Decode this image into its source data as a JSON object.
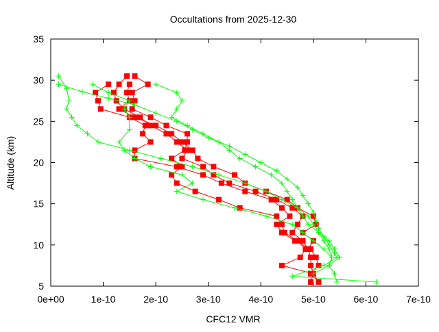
{
  "chart_data": {
    "type": "line",
    "title": "Occultations from 2025-12-30",
    "xlabel": "CFC12 VMR",
    "ylabel": "Altitude (km)",
    "xlim": [
      0,
      7e-10
    ],
    "ylim": [
      5,
      35
    ],
    "xticks": [
      "0e+00",
      "1e-10",
      "2e-10",
      "3e-10",
      "4e-10",
      "5e-10",
      "6e-10",
      "7e-10"
    ],
    "yticks": [
      "5",
      "10",
      "15",
      "20",
      "25",
      "30",
      "35"
    ],
    "grid": false,
    "colors": {
      "observed": "#ff0000",
      "model": "#00ff00"
    },
    "series": [
      {
        "marker": "square",
        "color": "#ff0000",
        "points": [
          [
            1.45e-10,
            30.5
          ],
          [
            1.3e-10,
            29.5
          ],
          [
            1.2e-10,
            28.5
          ],
          [
            1.25e-10,
            27.5
          ],
          [
            1.4e-10,
            26.5
          ],
          [
            1.7e-10,
            25.5
          ],
          [
            1.9e-10,
            24.5
          ],
          [
            2.2e-10,
            23.5
          ],
          [
            2.4e-10,
            22.5
          ],
          [
            2.6e-10,
            21.5
          ],
          [
            2.5e-10,
            20.5
          ],
          [
            2.9e-10,
            19.5
          ],
          [
            3.1e-10,
            18.5
          ],
          [
            3.4e-10,
            17.5
          ],
          [
            3.9e-10,
            16.5
          ],
          [
            4.3e-10,
            15.5
          ],
          [
            4.6e-10,
            14.5
          ],
          [
            4.8e-10,
            13.5
          ],
          [
            4.7e-10,
            12.5
          ],
          [
            4.6e-10,
            11.5
          ],
          [
            4.8e-10,
            10.5
          ],
          [
            4.9e-10,
            9.5
          ],
          [
            4.95e-10,
            8.5
          ],
          [
            4.95e-10,
            7.5
          ],
          [
            5e-10,
            6.5
          ],
          [
            4.95e-10,
            5.5
          ]
        ]
      },
      {
        "marker": "square",
        "color": "#ff0000",
        "points": [
          [
            1.6e-10,
            30.5
          ],
          [
            1.85e-10,
            29.5
          ],
          [
            1.55e-10,
            28.5
          ],
          [
            1.6e-10,
            27.5
          ],
          [
            1.55e-10,
            26.5
          ],
          [
            1.9e-10,
            25.5
          ],
          [
            2.2e-10,
            24.5
          ],
          [
            2.6e-10,
            23.5
          ],
          [
            2.6e-10,
            22.5
          ],
          [
            2.55e-10,
            21.5
          ],
          [
            2.3e-10,
            20.5
          ],
          [
            2.5e-10,
            19.5
          ],
          [
            2.3e-10,
            18.5
          ],
          [
            2.4e-10,
            17.5
          ],
          [
            2.75e-10,
            16.5
          ],
          [
            3.2e-10,
            15.5
          ],
          [
            3.6e-10,
            14.5
          ],
          [
            4.3e-10,
            13.5
          ],
          [
            4.4e-10,
            12.5
          ],
          [
            4.45e-10,
            11.5
          ],
          [
            4.7e-10,
            10.5
          ],
          [
            4.85e-10,
            9.5
          ],
          [
            4.75e-10,
            8.5
          ],
          [
            4.4e-10,
            7.5
          ],
          [
            5e-10,
            6.5
          ],
          [
            5.1e-10,
            5.5
          ]
        ]
      },
      {
        "marker": "square",
        "color": "#ff0000",
        "points": [
          [
            1.1e-10,
            29.5
          ],
          [
            8.5e-11,
            28.5
          ],
          [
            9e-11,
            27.5
          ],
          [
            9.5e-11,
            26.5
          ],
          [
            1.5e-10,
            25.5
          ],
          [
            1.8e-10,
            24.5
          ],
          [
            1.75e-10,
            23.5
          ],
          [
            1.9e-10,
            22.5
          ],
          [
            1.6e-10,
            21.5
          ],
          [
            1.6e-10,
            20.5
          ],
          [
            2.4e-10,
            19.5
          ],
          [
            2.9e-10,
            18.5
          ],
          [
            3.25e-10,
            17.5
          ],
          [
            3.7e-10,
            16.5
          ],
          [
            4.2e-10,
            15.5
          ],
          [
            4.4e-10,
            14.5
          ],
          [
            4.55e-10,
            13.5
          ],
          [
            4.3e-10,
            12.5
          ],
          [
            4.4e-10,
            11.5
          ],
          [
            4.65e-10,
            10.5
          ],
          [
            4.95e-10,
            9.5
          ],
          [
            5.05e-10,
            8.5
          ],
          [
            5.1e-10,
            7.5
          ],
          [
            4.95e-10,
            6.5
          ],
          [
            5.1e-10,
            5.5
          ]
        ]
      },
      {
        "marker": "square",
        "color": "#ff0000",
        "points": [
          [
            1.5e-10,
            29.5
          ],
          [
            1.45e-10,
            28.5
          ],
          [
            1.5e-10,
            27.5
          ],
          [
            1.3e-10,
            26.5
          ],
          [
            1.6e-10,
            25.5
          ],
          [
            2e-10,
            24.5
          ],
          [
            2.3e-10,
            23.5
          ],
          [
            2.5e-10,
            22.5
          ],
          [
            2.7e-10,
            21.5
          ],
          [
            2.8e-10,
            20.5
          ],
          [
            3.1e-10,
            19.5
          ],
          [
            3.5e-10,
            18.5
          ],
          [
            3.7e-10,
            17.5
          ],
          [
            4.1e-10,
            16.5
          ],
          [
            4.5e-10,
            15.5
          ],
          [
            4.7e-10,
            14.5
          ],
          [
            5e-10,
            13.5
          ],
          [
            5.05e-10,
            12.5
          ],
          [
            4.8e-10,
            11.5
          ],
          [
            5e-10,
            10.5
          ],
          [
            4.9e-10,
            9.5
          ]
        ]
      },
      {
        "marker": "plus",
        "color": "#00ff00",
        "points": [
          [
            1.5e-11,
            30.5
          ],
          [
            3e-11,
            29
          ],
          [
            3.5e-11,
            27.5
          ],
          [
            3e-11,
            26.5
          ],
          [
            4e-11,
            25.5
          ],
          [
            5e-11,
            24.5
          ],
          [
            7e-11,
            23.5
          ],
          [
            9e-11,
            22.5
          ],
          [
            1.5e-10,
            21.5
          ],
          [
            2.1e-10,
            20.5
          ],
          [
            2.7e-10,
            19.5
          ],
          [
            3.2e-10,
            18.5
          ],
          [
            3.7e-10,
            17.5
          ],
          [
            4.1e-10,
            16.5
          ],
          [
            4.4e-10,
            15.5
          ],
          [
            4.7e-10,
            14.5
          ],
          [
            4.9e-10,
            13.5
          ],
          [
            5e-10,
            12.5
          ],
          [
            5.1e-10,
            11.5
          ],
          [
            5.2e-10,
            10.5
          ],
          [
            5.3e-10,
            9.5
          ],
          [
            5.35e-10,
            8.5
          ],
          [
            5.3e-10,
            7.5
          ],
          [
            5.4e-10,
            6.5
          ],
          [
            5.45e-10,
            5.5
          ]
        ]
      },
      {
        "marker": "plus",
        "color": "#00ff00",
        "points": [
          [
            1.5e-11,
            29.5
          ],
          [
            6e-11,
            28.6
          ],
          [
            1.1e-10,
            27.8
          ],
          [
            1.6e-10,
            27
          ],
          [
            2e-10,
            26
          ],
          [
            2.4e-10,
            25
          ],
          [
            2.7e-10,
            24
          ],
          [
            3e-10,
            23
          ],
          [
            3.4e-10,
            22
          ],
          [
            3.7e-10,
            21
          ],
          [
            4e-10,
            20
          ],
          [
            4.3e-10,
            19
          ],
          [
            4.5e-10,
            18
          ],
          [
            4.7e-10,
            17
          ],
          [
            4.8e-10,
            16
          ],
          [
            4.9e-10,
            15
          ],
          [
            5e-10,
            14
          ],
          [
            5.05e-10,
            13
          ],
          [
            5.1e-10,
            12
          ],
          [
            5.2e-10,
            11
          ],
          [
            5.3e-10,
            10
          ],
          [
            5.4e-10,
            9
          ],
          [
            5.45e-10,
            8.5
          ],
          [
            5.2e-10,
            7.5
          ],
          [
            4.6e-10,
            6.2
          ],
          [
            6.2e-10,
            5.5
          ]
        ]
      },
      {
        "marker": "plus",
        "color": "#00ff00",
        "points": [
          [
            2e-10,
            29.5
          ],
          [
            2.4e-10,
            28.5
          ],
          [
            2.5e-10,
            27.5
          ],
          [
            2.4e-10,
            26.5
          ],
          [
            2.3e-10,
            25.5
          ],
          [
            2.6e-10,
            24.5
          ],
          [
            2.9e-10,
            23.5
          ],
          [
            3.2e-10,
            22.5
          ],
          [
            3.4e-10,
            21.5
          ],
          [
            3.6e-10,
            20.5
          ],
          [
            3.9e-10,
            19.5
          ],
          [
            4.2e-10,
            18.5
          ],
          [
            4.4e-10,
            17.5
          ],
          [
            4.5e-10,
            16.5
          ],
          [
            4.6e-10,
            15.5
          ],
          [
            4.7e-10,
            14.5
          ],
          [
            4.8e-10,
            13.5
          ],
          [
            4.9e-10,
            12.5
          ],
          [
            5.1e-10,
            11.5
          ],
          [
            5.3e-10,
            10.5
          ],
          [
            5.4e-10,
            9.5
          ],
          [
            5.5e-10,
            8.5
          ],
          [
            5.3e-10,
            7.5
          ]
        ]
      },
      {
        "marker": "plus",
        "color": "#00ff00",
        "points": [
          [
            8e-11,
            29.5
          ],
          [
            1.1e-10,
            28.5
          ],
          [
            1.5e-10,
            27.5
          ],
          [
            1.4e-10,
            26.5
          ],
          [
            1.5e-10,
            25.5
          ],
          [
            1.5e-10,
            24
          ],
          [
            1.3e-10,
            22.5
          ],
          [
            1.4e-10,
            21.5
          ],
          [
            1.6e-10,
            20.5
          ],
          [
            1.9e-10,
            19.5
          ],
          [
            2.5e-10,
            18.5
          ],
          [
            2.7e-10,
            17.5
          ],
          [
            2.4e-10,
            16.5
          ],
          [
            2.9e-10,
            15.5
          ],
          [
            3.5e-10,
            14.5
          ],
          [
            4.1e-10,
            13.5
          ],
          [
            4.6e-10,
            12.5
          ],
          [
            4.8e-10,
            11.5
          ],
          [
            5e-10,
            10.5
          ],
          [
            5.2e-10,
            9.5
          ],
          [
            5.35e-10,
            8.5
          ],
          [
            5.3e-10,
            7.5
          ],
          [
            5e-10,
            6.5
          ]
        ]
      }
    ]
  }
}
